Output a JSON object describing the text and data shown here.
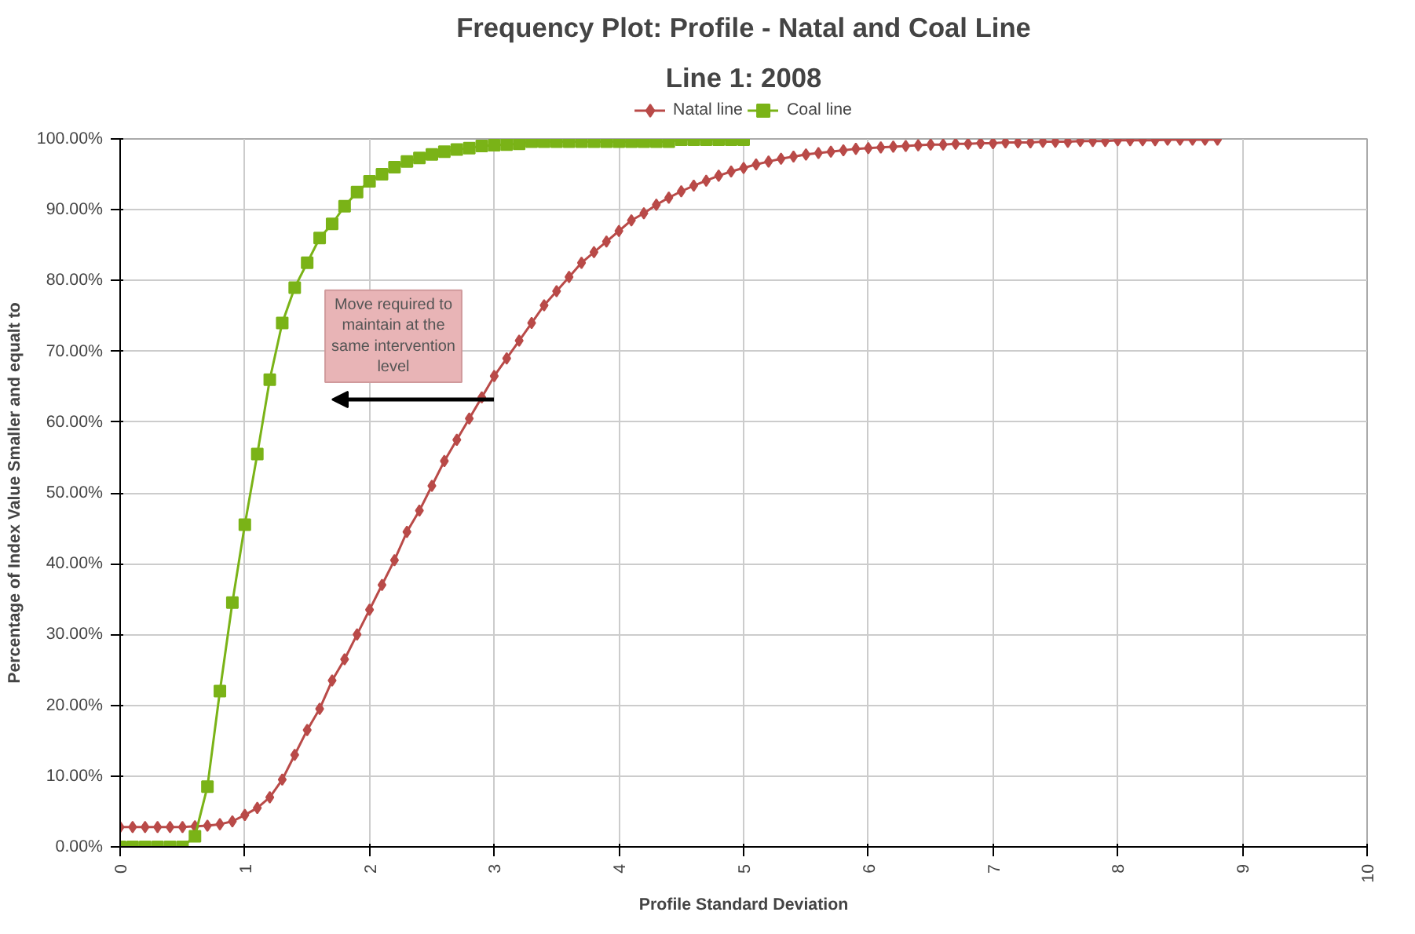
{
  "chart_data": {
    "type": "line",
    "title": "Frequency Plot: Profile - Natal and Coal Line",
    "subtitle": "Line 1: 2008",
    "xlabel": "Profile Standard Deviation",
    "ylabel": "Percentage of Index Value Smaller and equalt to",
    "series": [
      {
        "name": "Natal line",
        "color": "#b94a48",
        "marker": "diamond",
        "x": [
          0,
          0.1,
          0.2,
          0.3,
          0.4,
          0.5,
          0.6,
          0.7,
          0.8,
          0.9,
          1.0,
          1.1,
          1.2,
          1.3,
          1.4,
          1.5,
          1.6,
          1.7,
          1.8,
          1.9,
          2.0,
          2.1,
          2.2,
          2.3,
          2.4,
          2.5,
          2.6,
          2.7,
          2.8,
          2.9,
          3.0,
          3.1,
          3.2,
          3.3,
          3.4,
          3.5,
          3.6,
          3.7,
          3.8,
          3.9,
          4.0,
          4.1,
          4.2,
          4.3,
          4.4,
          4.5,
          4.6,
          4.7,
          4.8,
          4.9,
          5.0,
          5.1,
          5.2,
          5.3,
          5.4,
          5.5,
          5.6,
          5.7,
          5.8,
          5.9,
          6.0,
          6.1,
          6.2,
          6.3,
          6.4,
          6.5,
          6.6,
          6.7,
          6.8,
          6.9,
          7.0,
          7.1,
          7.2,
          7.3,
          7.4,
          7.5,
          7.6,
          7.7,
          7.8,
          7.9,
          8.0,
          8.1,
          8.2,
          8.3,
          8.4,
          8.5,
          8.6,
          8.7,
          8.8
        ],
        "values": [
          2.8,
          2.8,
          2.8,
          2.8,
          2.8,
          2.8,
          2.9,
          3.0,
          3.2,
          3.6,
          4.5,
          5.5,
          7.0,
          9.5,
          13.0,
          16.5,
          19.5,
          23.5,
          26.5,
          30.0,
          33.5,
          37.0,
          40.5,
          44.5,
          47.5,
          51.0,
          54.5,
          57.5,
          60.5,
          63.5,
          66.5,
          69.0,
          71.5,
          74.0,
          76.5,
          78.5,
          80.5,
          82.5,
          84.0,
          85.5,
          87.0,
          88.5,
          89.5,
          90.7,
          91.7,
          92.6,
          93.4,
          94.1,
          94.8,
          95.4,
          95.9,
          96.4,
          96.8,
          97.2,
          97.5,
          97.8,
          98.0,
          98.2,
          98.4,
          98.6,
          98.7,
          98.8,
          98.9,
          99.0,
          99.1,
          99.2,
          99.2,
          99.3,
          99.3,
          99.4,
          99.4,
          99.5,
          99.5,
          99.5,
          99.6,
          99.6,
          99.6,
          99.7,
          99.7,
          99.7,
          99.8,
          99.8,
          99.8,
          99.8,
          99.9,
          99.9,
          99.9,
          99.9,
          99.9
        ]
      },
      {
        "name": "Coal line",
        "color": "#7ab317",
        "marker": "square",
        "x": [
          0,
          0.1,
          0.2,
          0.3,
          0.4,
          0.5,
          0.6,
          0.7,
          0.8,
          0.9,
          1.0,
          1.1,
          1.2,
          1.3,
          1.4,
          1.5,
          1.6,
          1.7,
          1.8,
          1.9,
          2.0,
          2.1,
          2.2,
          2.3,
          2.4,
          2.5,
          2.6,
          2.7,
          2.8,
          2.9,
          3.0,
          3.1,
          3.2,
          3.3,
          3.4,
          3.5,
          3.6,
          3.7,
          3.8,
          3.9,
          4.0,
          4.1,
          4.2,
          4.3,
          4.4,
          4.5,
          4.6,
          4.7,
          4.8,
          4.9,
          5.0
        ],
        "values": [
          0,
          0,
          0,
          0,
          0,
          0,
          1.5,
          8.5,
          22.0,
          34.5,
          45.5,
          55.5,
          66.0,
          74.0,
          79.0,
          82.5,
          86.0,
          88.0,
          90.5,
          92.5,
          94.0,
          95.0,
          96.0,
          96.8,
          97.3,
          97.8,
          98.2,
          98.5,
          98.7,
          99.0,
          99.1,
          99.2,
          99.3,
          99.6,
          99.6,
          99.6,
          99.6,
          99.6,
          99.6,
          99.6,
          99.6,
          99.6,
          99.6,
          99.6,
          99.6,
          99.9,
          99.9,
          99.9,
          99.9,
          99.9,
          99.9
        ]
      }
    ],
    "xlim": [
      0,
      10
    ],
    "xticks": [
      0,
      1,
      2,
      3,
      4,
      5,
      6,
      7,
      8,
      9,
      10
    ],
    "ylim": [
      0,
      100
    ],
    "yticks": [
      {
        "value": 0,
        "label": "0.00%"
      },
      {
        "value": 10,
        "label": "10.00%"
      },
      {
        "value": 20,
        "label": "20.00%"
      },
      {
        "value": 30,
        "label": "30.00%"
      },
      {
        "value": 40,
        "label": "40.00%"
      },
      {
        "value": 50,
        "label": "50.00%"
      },
      {
        "value": 60,
        "label": "60.00%"
      },
      {
        "value": 70,
        "label": "70.00%"
      },
      {
        "value": 80,
        "label": "80.00%"
      },
      {
        "value": 90,
        "label": "90.00%"
      },
      {
        "value": 100,
        "label": "100.00%"
      }
    ],
    "annotations": [
      "Move required to\nmaintain at the\nsame intervention\nlevel"
    ],
    "grid": true,
    "legend": "top",
    "line_style": "solid"
  }
}
